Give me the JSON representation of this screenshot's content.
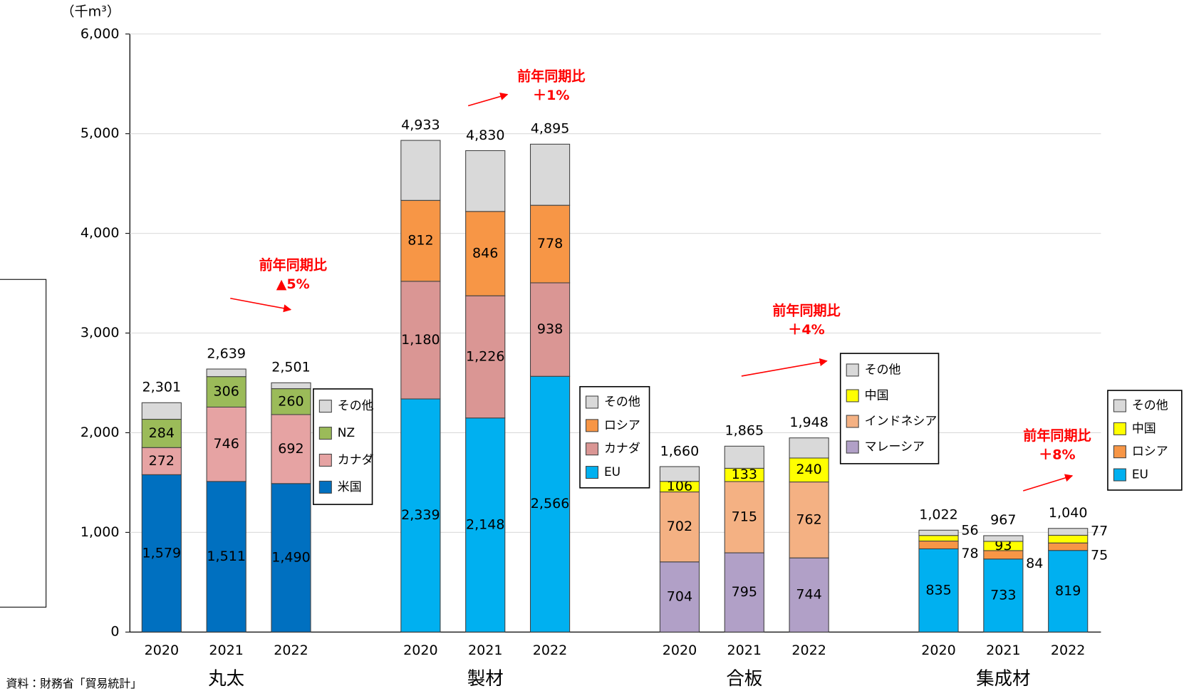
{
  "chart_data": {
    "type": "stacked_bar",
    "unit_label": "（千m³）",
    "source": "資料：財務省「貿易統計」",
    "ylim": [
      0,
      6000
    ],
    "yticks": [
      0,
      {
        "value": 1000,
        "label": "1,000"
      },
      {
        "value": 2000,
        "label": "2,000"
      },
      {
        "value": 3000,
        "label": "3,000"
      },
      {
        "value": 4000,
        "label": "4,000"
      },
      {
        "value": 5000,
        "label": "5,000"
      },
      {
        "value": 6000,
        "label": "6,000"
      }
    ],
    "grid": true,
    "groups": [
      {
        "name": "丸太",
        "categories": [
          "2020",
          "2021",
          "2022"
        ],
        "totals": [
          2301,
          2639,
          2501
        ],
        "totals_labels": [
          "2,301",
          "2,639",
          "2,501"
        ],
        "annotation": [
          "前年同期比",
          "▲5%"
        ],
        "series": [
          {
            "name": "米国",
            "color": "#0070c0",
            "label_color": "#ffffff",
            "values": [
              1579,
              1511,
              1490
            ],
            "value_labels": [
              "1,579",
              "1,511",
              "1,490"
            ]
          },
          {
            "name": "カナダ",
            "color": "#e6a3a3",
            "label_color": "#000000",
            "values": [
              272,
              746,
              692
            ],
            "value_labels": [
              "272",
              "746",
              "692"
            ]
          },
          {
            "name": "NZ",
            "color": "#9bbb59",
            "label_color": "#000000",
            "values": [
              284,
              306,
              260
            ],
            "value_labels": [
              "284",
              "306",
              "260"
            ]
          },
          {
            "name": "その他",
            "color": "#d9d9d9",
            "label_color": "#000000",
            "values": [
              166,
              76,
              59
            ],
            "value_labels": [
              null,
              null,
              null
            ]
          }
        ]
      },
      {
        "name": "製材",
        "categories": [
          "2020",
          "2021",
          "2022"
        ],
        "totals": [
          4933,
          4830,
          4895
        ],
        "totals_labels": [
          "4,933",
          "4,830",
          "4,895"
        ],
        "annotation": [
          "前年同期比",
          "＋1%"
        ],
        "series": [
          {
            "name": "EU",
            "color": "#00b0f0",
            "label_color": "#000000",
            "values": [
              2339,
              2148,
              2566
            ],
            "value_labels": [
              "2,339",
              "2,148",
              "2,566"
            ]
          },
          {
            "name": "カナダ",
            "color": "#da9694",
            "label_color": "#000000",
            "values": [
              1180,
              1226,
              938
            ],
            "value_labels": [
              "1,180",
              "1,226",
              "938"
            ]
          },
          {
            "name": "ロシア",
            "color": "#f79646",
            "label_color": "#000000",
            "values": [
              812,
              846,
              778
            ],
            "value_labels": [
              "812",
              "846",
              "778"
            ]
          },
          {
            "name": "その他",
            "color": "#d9d9d9",
            "label_color": "#000000",
            "values": [
              602,
              610,
              613
            ],
            "value_labels": [
              null,
              null,
              null
            ]
          }
        ]
      },
      {
        "name": "合板",
        "categories": [
          "2020",
          "2021",
          "2022"
        ],
        "totals": [
          1660,
          1865,
          1948
        ],
        "totals_labels": [
          "1,660",
          "1,865",
          "1,948"
        ],
        "annotation": [
          "前年同期比",
          "＋4%"
        ],
        "series": [
          {
            "name": "マレーシア",
            "color": "#b1a0c7",
            "label_color": "#000000",
            "values": [
              704,
              795,
              744
            ],
            "value_labels": [
              "704",
              "795",
              "744"
            ]
          },
          {
            "name": "インドネシア",
            "color": "#f4b183",
            "label_color": "#000000",
            "values": [
              702,
              715,
              762
            ],
            "value_labels": [
              "702",
              "715",
              "762"
            ]
          },
          {
            "name": "中国",
            "color": "#ffff00",
            "label_color": "#000000",
            "values": [
              106,
              133,
              240
            ],
            "value_labels": [
              "106",
              "133",
              "240"
            ]
          },
          {
            "name": "その他",
            "color": "#d9d9d9",
            "label_color": "#000000",
            "values": [
              148,
              222,
              202
            ],
            "value_labels": [
              null,
              null,
              null
            ]
          }
        ]
      },
      {
        "name": "集成材",
        "categories": [
          "2020",
          "2021",
          "2022"
        ],
        "totals": [
          1022,
          967,
          1040
        ],
        "totals_labels": [
          "1,022",
          "967",
          "1,040"
        ],
        "annotation": [
          "前年同期比",
          "＋8%"
        ],
        "series": [
          {
            "name": "EU",
            "color": "#00b0f0",
            "label_color": "#000000",
            "values": [
              835,
              733,
              819
            ],
            "value_labels": [
              "835",
              "733",
              "819"
            ]
          },
          {
            "name": "ロシア",
            "color": "#f79646",
            "label_color": "#000000",
            "values": [
              78,
              84,
              75
            ],
            "value_labels": [
              "78",
              "84",
              "75"
            ]
          },
          {
            "name": "中国",
            "color": "#ffff00",
            "label_color": "#000000",
            "values": [
              56,
              93,
              77
            ],
            "value_labels": [
              "56",
              "93",
              "77"
            ]
          },
          {
            "name": "その他",
            "color": "#d9d9d9",
            "label_color": "#000000",
            "values": [
              53,
              57,
              69
            ],
            "value_labels": [
              null,
              null,
              null
            ]
          }
        ]
      }
    ]
  }
}
